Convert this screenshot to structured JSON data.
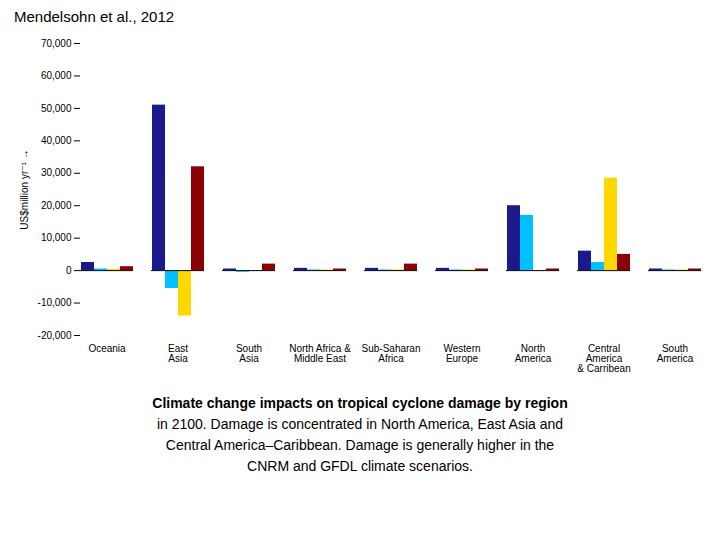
{
  "chart_data": {
    "type": "bar",
    "title": "Mendelsohn et al., 2012",
    "ylabel": "US$million yr⁻¹",
    "categories": [
      "Oceania",
      "East\nAsia",
      "South\nAsia",
      "North Africa &\nMiddle East",
      "Sub-Saharan\nAfrica",
      "Western\nEurope",
      "North\nAmerica",
      "Central\nAmerica\n& Carribean",
      "South\nAmerica"
    ],
    "series": [
      {
        "color": "#1a1a8c",
        "values": [
          2500,
          51000,
          500,
          700,
          700,
          700,
          20000,
          6000,
          500
        ]
      },
      {
        "color": "#00bfff",
        "values": [
          500,
          -5500,
          -500,
          200,
          200,
          200,
          17000,
          2500,
          200
        ]
      },
      {
        "color": "#ffd700",
        "values": [
          400,
          -14000,
          -200,
          200,
          200,
          200,
          -200,
          28500,
          200
        ]
      },
      {
        "color": "#8b0000",
        "values": [
          1200,
          32000,
          2000,
          500,
          2000,
          500,
          500,
          5000,
          500
        ]
      }
    ],
    "ylim": [
      -20000,
      70000
    ],
    "yticks": [
      {
        "value": -20000,
        "label": "-20,000"
      },
      {
        "value": -10000,
        "label": "-10,000"
      },
      0,
      {
        "value": 10000,
        "label": "10,000"
      },
      {
        "value": 20000,
        "label": "20,000"
      },
      {
        "value": 30000,
        "label": "30,000"
      },
      {
        "value": 40000,
        "label": "40,000"
      },
      {
        "value": 50000,
        "label": "50,000"
      },
      {
        "value": 60000,
        "label": "60,000"
      },
      {
        "value": 70000,
        "label": "70,000"
      }
    ],
    "grid": false,
    "caption": [
      "Climate change impacts on tropical cyclone damage by region",
      "in 2100. Damage is concentrated in North America, East Asia and",
      "Central America–Caribbean. Damage is generally higher in the",
      "CNRM and GFDL climate scenarios."
    ]
  }
}
